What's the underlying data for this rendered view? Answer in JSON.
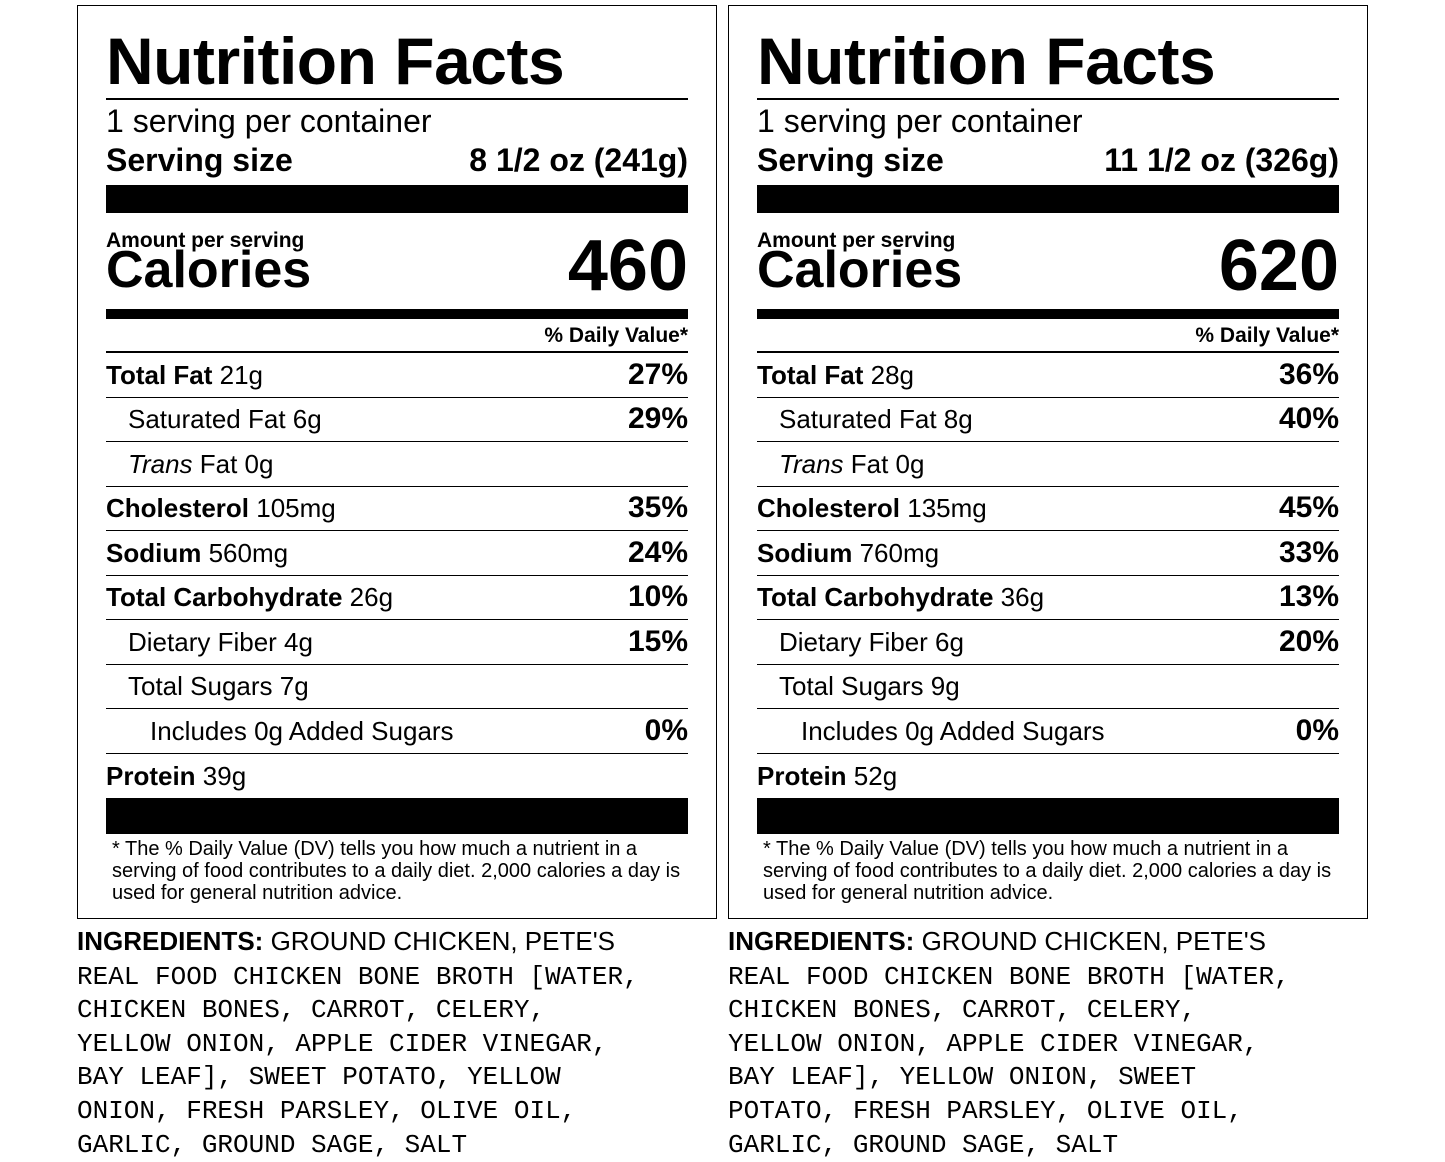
{
  "labels": [
    {
      "title": "Nutrition Facts",
      "servings": "1 serving per container",
      "serving_size_label": "Serving size",
      "serving_size_value": "8 1/2 oz (241g)",
      "amount_per_serving": "Amount per serving",
      "calories_label": "Calories",
      "calories_value": "460",
      "dv_header": "% Daily Value*",
      "nutrients": [
        {
          "name": "Total Fat",
          "amount": " 21g",
          "dv": "27%"
        },
        {
          "name": "Saturated Fat 6g",
          "amount": "",
          "dv": "29%"
        },
        {
          "name_italic": "Trans",
          "name": " Fat 0g",
          "dv": ""
        },
        {
          "name": "Cholesterol",
          "amount": " 105mg",
          "dv": "35%"
        },
        {
          "name": "Sodium",
          "amount": " 560mg",
          "dv": "24%"
        },
        {
          "name": "Total Carbohydrate",
          "amount": " 26g",
          "dv": "10%"
        },
        {
          "name": "Dietary Fiber 4g",
          "amount": "",
          "dv": "15%"
        },
        {
          "name": "Total Sugars 7g",
          "amount": "",
          "dv": ""
        },
        {
          "name": "Includes 0g Added Sugars",
          "amount": "",
          "dv": "0%"
        },
        {
          "name": "Protein",
          "amount": " 39g",
          "dv": ""
        }
      ],
      "footnote": "* The % Daily Value (DV) tells you how much a nutrient in a serving of food contributes to a daily diet. 2,000 calories a day is used for general nutrition advice.",
      "ingredients_head": "INGREDIENTS:",
      "ingredients_first": " GROUND CHICKEN, PETE'S",
      "ingredients_lines": [
        "REAL FOOD CHICKEN BONE BROTH [WATER,",
        "CHICKEN BONES, CARROT, CELERY,",
        "YELLOW ONION, APPLE CIDER VINEGAR,",
        "BAY LEAF], SWEET POTATO, YELLOW",
        "ONION, FRESH PARSLEY, OLIVE OIL,",
        "GARLIC, GROUND SAGE, SALT"
      ]
    },
    {
      "title": "Nutrition Facts",
      "servings": "1 serving per container",
      "serving_size_label": "Serving size",
      "serving_size_value": "11 1/2 oz (326g)",
      "amount_per_serving": "Amount per serving",
      "calories_label": "Calories",
      "calories_value": "620",
      "dv_header": "% Daily Value*",
      "nutrients": [
        {
          "name": "Total Fat",
          "amount": " 28g",
          "dv": "36%"
        },
        {
          "name": "Saturated Fat 8g",
          "amount": "",
          "dv": "40%"
        },
        {
          "name_italic": "Trans",
          "name": " Fat 0g",
          "dv": ""
        },
        {
          "name": "Cholesterol",
          "amount": " 135mg",
          "dv": "45%"
        },
        {
          "name": "Sodium",
          "amount": " 760mg",
          "dv": "33%"
        },
        {
          "name": "Total Carbohydrate",
          "amount": " 36g",
          "dv": "13%"
        },
        {
          "name": "Dietary Fiber 6g",
          "amount": "",
          "dv": "20%"
        },
        {
          "name": "Total Sugars 9g",
          "amount": "",
          "dv": ""
        },
        {
          "name": "Includes 0g Added Sugars",
          "amount": "",
          "dv": "0%"
        },
        {
          "name": "Protein",
          "amount": " 52g",
          "dv": ""
        }
      ],
      "footnote": "* The % Daily Value (DV) tells you how much a nutrient in a serving of food contributes to a daily diet. 2,000 calories a day is used for general nutrition advice.",
      "ingredients_head": "INGREDIENTS:",
      "ingredients_first": " GROUND CHICKEN, PETE'S",
      "ingredients_lines": [
        "REAL FOOD CHICKEN BONE BROTH [WATER,",
        "CHICKEN BONES, CARROT, CELERY,",
        "YELLOW ONION, APPLE CIDER VINEGAR,",
        "BAY LEAF], YELLOW ONION, SWEET",
        "POTATO, FRESH PARSLEY, OLIVE OIL,",
        "GARLIC, GROUND SAGE, SALT"
      ]
    }
  ]
}
